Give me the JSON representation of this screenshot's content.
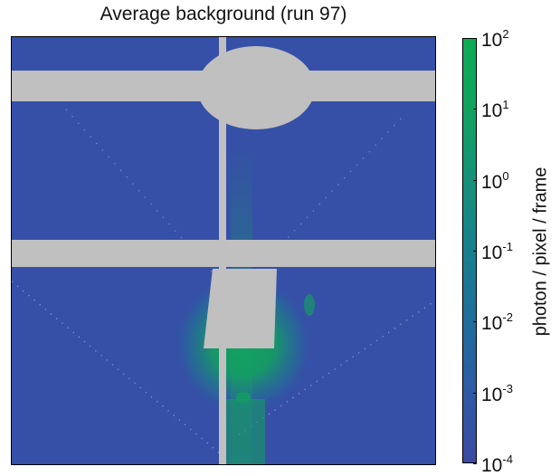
{
  "chart_data": {
    "type": "heatmap",
    "title": "Average background (run 97)",
    "colorbar": {
      "label": "photon / pixel / frame",
      "scale": "log",
      "range": [
        0.0001,
        100
      ],
      "ticks": [
        {
          "value": 100,
          "base": "10",
          "exp": "2"
        },
        {
          "value": 10,
          "base": "10",
          "exp": "1"
        },
        {
          "value": 1,
          "base": "10",
          "exp": "0"
        },
        {
          "value": 0.1,
          "base": "10",
          "exp": "-1"
        },
        {
          "value": 0.01,
          "base": "10",
          "exp": "-2"
        },
        {
          "value": 0.001,
          "base": "10",
          "exp": "-3"
        },
        {
          "value": 0.0001,
          "base": "10",
          "exp": "-4"
        }
      ],
      "colors": [
        "#3b4aa0",
        "#2e5aa5",
        "#1f6d9c",
        "#17808e",
        "#159179",
        "#10a360",
        "#0eab55"
      ]
    },
    "image_colors": {
      "background": "#3550a6",
      "mask": "#c0c0c0",
      "glow": "#12a35e"
    }
  }
}
